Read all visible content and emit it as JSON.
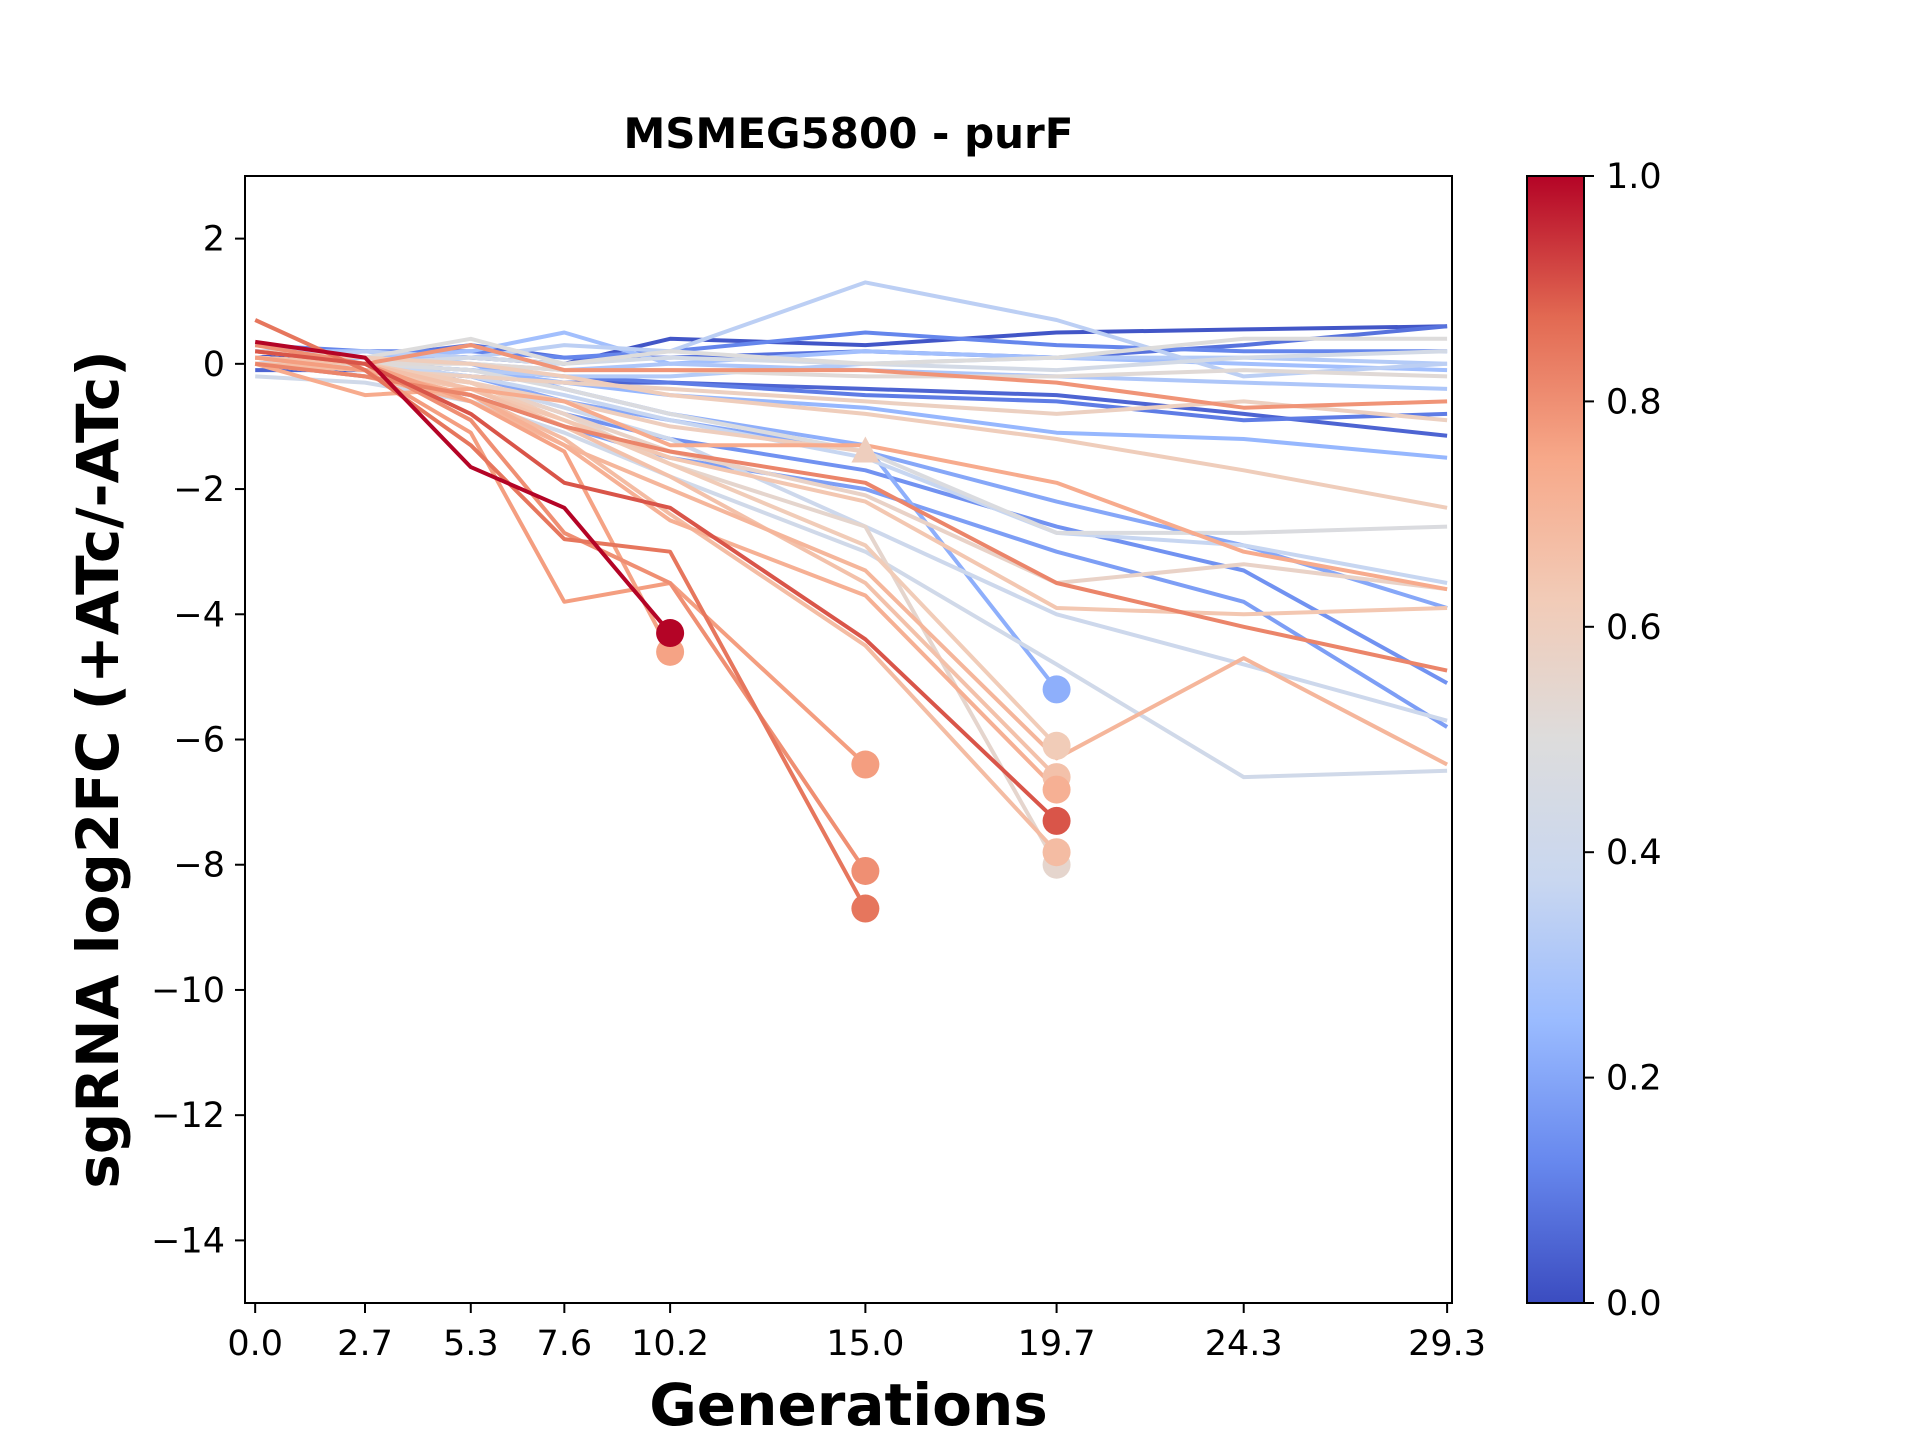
{
  "chart_data": {
    "type": "line",
    "title": "MSMEG5800 - purF",
    "xlabel": "Generations",
    "ylabel": "sgRNA log2FC (+ATc/-ATc)",
    "x_ticks": [
      "0.0",
      "2.7",
      "5.3",
      "7.6",
      "10.2",
      "15.0",
      "19.7",
      "24.3",
      "29.3"
    ],
    "y_ticks": [
      "2",
      "0",
      "−2",
      "−4",
      "−6",
      "−8",
      "−10",
      "−12",
      "−14"
    ],
    "xlim": [
      -0.25,
      29.42
    ],
    "ylim": [
      -15,
      3
    ],
    "colorbar": {
      "colormap": "coolwarm",
      "range": [
        0.0,
        1.0
      ],
      "tick_labels": [
        "0.0",
        "0.2",
        "0.4",
        "0.6",
        "0.8",
        "1.0"
      ],
      "colors": [
        "#3b4cc0",
        "#6788ee",
        "#9abbff",
        "#c9d7f0",
        "#dddcdc",
        "#f2cbb7",
        "#f7a889",
        "#e26952",
        "#b40426"
      ]
    },
    "series": [
      {
        "c": 0.02,
        "x": [
          0.0,
          2.7,
          5.3,
          7.6,
          10.2,
          15.0,
          19.7,
          24.3,
          29.3
        ],
        "y": [
          0.1,
          0.2,
          0.1,
          0.0,
          0.4,
          0.3,
          0.5,
          0.55,
          0.6
        ]
      },
      {
        "c": 0.05,
        "x": [
          0.0,
          2.7,
          5.3,
          7.6,
          10.2,
          15.0,
          19.7,
          24.3,
          29.3
        ],
        "y": [
          -0.1,
          -0.1,
          -0.2,
          -0.3,
          -0.3,
          -0.4,
          -0.5,
          -0.8,
          -1.15
        ]
      },
      {
        "c": 0.08,
        "x": [
          0.0,
          2.7,
          5.3,
          7.6,
          10.2,
          15.0,
          19.7,
          24.3,
          29.3
        ],
        "y": [
          0.2,
          0.1,
          0.3,
          0.1,
          0.1,
          0.2,
          0.1,
          0.3,
          0.6
        ]
      },
      {
        "c": 0.1,
        "x": [
          0.0,
          2.7,
          5.3,
          7.6,
          10.2,
          15.0,
          19.7,
          24.3,
          29.3
        ],
        "y": [
          0.0,
          0.0,
          -0.1,
          -0.2,
          -0.3,
          -0.5,
          -0.6,
          -0.9,
          -0.8
        ]
      },
      {
        "c": 0.12,
        "x": [
          0.0,
          2.7,
          5.3,
          7.6,
          10.2,
          15.0,
          19.7,
          24.3,
          29.3
        ],
        "y": [
          0.3,
          0.2,
          0.2,
          0.1,
          0.2,
          0.5,
          0.3,
          0.2,
          0.2
        ]
      },
      {
        "c": 0.15,
        "x": [
          0.0,
          2.7,
          5.3,
          7.6,
          10.2,
          15.0,
          19.7,
          24.3,
          29.3
        ],
        "y": [
          0.1,
          0.0,
          -0.3,
          -0.8,
          -1.2,
          -1.7,
          -2.6,
          -3.3,
          -5.1
        ]
      },
      {
        "c": 0.18,
        "x": [
          0.0,
          2.7,
          5.3,
          7.6,
          10.2,
          15.0,
          19.7,
          24.3,
          29.3
        ],
        "y": [
          0.0,
          -0.2,
          -0.5,
          -1.0,
          -1.5,
          -2.0,
          -3.0,
          -3.8,
          -5.8
        ]
      },
      {
        "c": 0.2,
        "x": [
          0.0,
          2.7,
          5.3,
          7.6,
          10.2,
          15.0,
          19.7,
          24.3,
          29.3
        ],
        "y": [
          0.1,
          0.0,
          -0.2,
          -0.6,
          -0.9,
          -1.4,
          -2.2,
          -2.9,
          -3.9
        ]
      },
      {
        "c": 0.22,
        "x": [
          0.0,
          2.7,
          5.3,
          7.6,
          10.2,
          15.0,
          19.7
        ],
        "y": [
          0.2,
          0.1,
          0.0,
          -0.4,
          -0.8,
          -1.3,
          -5.2
        ],
        "end": "dot"
      },
      {
        "c": 0.24,
        "x": [
          0.0,
          2.7,
          5.3,
          7.6,
          10.2,
          15.0,
          19.7,
          24.3,
          29.3
        ],
        "y": [
          0.1,
          0.0,
          -0.1,
          -0.3,
          -0.5,
          -0.7,
          -1.1,
          -1.2,
          -1.5
        ]
      },
      {
        "c": 0.27,
        "x": [
          0.0,
          2.7,
          5.3,
          7.6,
          10.2,
          15.0,
          19.7,
          24.3,
          29.3
        ],
        "y": [
          0.0,
          0.1,
          0.2,
          0.5,
          0.0,
          0.2,
          0.1,
          0.0,
          -0.1
        ]
      },
      {
        "c": 0.3,
        "x": [
          0.0,
          2.7,
          5.3,
          7.6,
          10.2,
          15.0,
          19.7,
          24.3,
          29.3
        ],
        "y": [
          0.2,
          0.2,
          0.0,
          -0.1,
          0.0,
          -0.1,
          -0.2,
          -0.3,
          -0.4
        ]
      },
      {
        "c": 0.32,
        "x": [
          0.0,
          2.7,
          5.3,
          7.6,
          10.2,
          15.0,
          19.7,
          24.3,
          29.3
        ],
        "y": [
          0.1,
          0.0,
          -0.1,
          -0.2,
          -0.2,
          0.0,
          0.1,
          0.1,
          0.0
        ]
      },
      {
        "c": 0.34,
        "x": [
          0.0,
          2.7,
          5.3,
          7.6,
          10.2,
          15.0,
          19.7,
          24.3,
          29.3
        ],
        "y": [
          0.0,
          0.2,
          0.1,
          0.3,
          0.2,
          1.3,
          0.7,
          -0.2,
          0.0
        ]
      },
      {
        "c": 0.37,
        "x": [
          0.0,
          2.7,
          5.3,
          7.6,
          10.2,
          15.0,
          19.7,
          24.3,
          29.3
        ],
        "y": [
          0.1,
          0.0,
          -0.2,
          -0.5,
          -0.9,
          -1.5,
          -2.7,
          -2.9,
          -3.5
        ]
      },
      {
        "c": 0.4,
        "x": [
          0.0,
          2.7,
          5.3,
          7.6,
          10.2,
          15.0,
          19.7,
          24.3,
          29.3
        ],
        "y": [
          0.0,
          -0.1,
          -0.3,
          -0.7,
          -1.2,
          -2.6,
          -4.0,
          -4.8,
          -5.7
        ]
      },
      {
        "c": 0.42,
        "x": [
          0.0,
          2.7,
          5.3,
          7.6,
          10.2,
          15.0,
          19.7,
          24.3,
          29.3
        ],
        "y": [
          -0.2,
          -0.3,
          -0.6,
          -1.1,
          -1.8,
          -3.0,
          -4.8,
          -6.6,
          -6.5
        ]
      },
      {
        "c": 0.44,
        "x": [
          0.0,
          2.7,
          5.3,
          7.6,
          10.2,
          15.0,
          19.7,
          24.3,
          29.3
        ],
        "y": [
          0.0,
          0.0,
          0.1,
          0.0,
          0.1,
          0.0,
          -0.1,
          0.1,
          0.2
        ]
      },
      {
        "c": 0.48,
        "x": [
          0.0,
          2.7,
          5.3,
          7.6,
          10.2,
          15.0,
          19.7,
          24.3,
          29.3
        ],
        "y": [
          0.1,
          0.0,
          -0.1,
          -0.4,
          -0.8,
          -1.4,
          -2.7,
          -2.7,
          -2.6
        ]
      },
      {
        "c": 0.5,
        "x": [
          0.0,
          2.7,
          5.3,
          7.6,
          10.2,
          15.0,
          19.7,
          24.3,
          29.3
        ],
        "y": [
          0.2,
          0.1,
          0.4,
          0.0,
          0.2,
          0.0,
          0.1,
          0.4,
          0.4
        ]
      },
      {
        "c": 0.52,
        "x": [
          0.0,
          2.7,
          5.3,
          7.6,
          10.2,
          15.0,
          19.7,
          24.3,
          29.3
        ],
        "y": [
          0.0,
          0.0,
          0.0,
          -0.1,
          -0.1,
          -0.2,
          -0.2,
          -0.1,
          -0.2
        ]
      },
      {
        "c": 0.55,
        "x": [
          0.0,
          2.7,
          5.3,
          7.6,
          10.2,
          15.0,
          19.7
        ],
        "y": [
          0.0,
          0.0,
          -0.3,
          -0.8,
          -1.6,
          -2.6,
          -8.0
        ],
        "end": "dot"
      },
      {
        "c": 0.57,
        "x": [
          0.0,
          2.7,
          5.3,
          7.6,
          10.2,
          15.0,
          19.7,
          24.3,
          29.3
        ],
        "y": [
          0.1,
          0.0,
          -0.3,
          -0.8,
          -1.4,
          -2.1,
          -3.5,
          -3.2,
          -3.6
        ]
      },
      {
        "c": 0.59,
        "x": [
          0.0,
          2.7,
          5.3,
          7.6,
          10.2,
          15.0,
          19.7,
          24.3,
          29.3
        ],
        "y": [
          0.0,
          -0.1,
          -0.2,
          -0.3,
          -0.4,
          -0.6,
          -0.8,
          -0.6,
          -0.9
        ]
      },
      {
        "c": 0.6,
        "x": [
          0.0,
          2.7,
          5.3,
          7.6,
          10.2,
          15.0
        ],
        "y": [
          0.0,
          -0.1,
          -0.3,
          -0.6,
          -1.0,
          -1.4
        ],
        "end": "tri"
      },
      {
        "c": 0.61,
        "x": [
          0.0,
          2.7,
          5.3,
          7.6,
          10.2,
          15.0,
          19.7,
          24.3,
          29.3
        ],
        "y": [
          0.2,
          0.1,
          0.0,
          -0.2,
          -0.5,
          -0.8,
          -1.2,
          -1.7,
          -2.3
        ]
      },
      {
        "c": 0.62,
        "x": [
          0.0,
          2.7,
          5.3,
          7.6,
          10.2,
          15.0,
          19.7
        ],
        "y": [
          0.1,
          0.0,
          -0.3,
          -0.9,
          -1.6,
          -2.9,
          -6.1
        ],
        "end": "dot"
      },
      {
        "c": 0.64,
        "x": [
          0.0,
          2.7,
          5.3,
          7.6,
          10.2,
          15.0,
          19.7,
          24.3,
          29.3
        ],
        "y": [
          0.0,
          -0.1,
          -0.4,
          -0.9,
          -1.5,
          -2.2,
          -3.9,
          -4.0,
          -3.9
        ]
      },
      {
        "c": 0.66,
        "x": [
          0.0,
          2.7,
          5.3,
          7.6,
          10.2,
          15.0,
          19.7
        ],
        "y": [
          0.1,
          0.0,
          -0.4,
          -1.0,
          -1.8,
          -3.5,
          -6.6
        ],
        "end": "dot"
      },
      {
        "c": 0.68,
        "x": [
          0.0,
          2.7,
          5.3,
          7.6,
          10.2,
          15.0,
          19.7
        ],
        "y": [
          0.0,
          -0.1,
          -0.5,
          -1.2,
          -2.4,
          -4.5,
          -7.8
        ],
        "end": "dot"
      },
      {
        "c": 0.7,
        "x": [
          0.0,
          2.7,
          5.3,
          7.6,
          10.2,
          15.0,
          19.7,
          24.3,
          29.3
        ],
        "y": [
          0.0,
          -0.2,
          -0.6,
          -1.3,
          -2.0,
          -3.3,
          -6.3,
          -4.7,
          -6.4
        ]
      },
      {
        "c": 0.72,
        "x": [
          0.0,
          2.7,
          5.3,
          7.6,
          10.2,
          15.0,
          19.7
        ],
        "y": [
          0.1,
          -0.1,
          -0.5,
          -1.3,
          -2.5,
          -3.7,
          -6.8
        ],
        "end": "dot"
      },
      {
        "c": 0.74,
        "x": [
          0.0,
          2.7,
          5.3,
          7.6,
          10.2,
          15.0,
          19.7,
          24.3,
          29.3
        ],
        "y": [
          0.0,
          -0.5,
          -0.4,
          -0.6,
          -1.3,
          -1.3,
          -1.9,
          -3.0,
          -3.6
        ]
      },
      {
        "c": 0.76,
        "x": [
          0.0,
          2.7,
          5.3,
          7.6,
          10.2
        ],
        "y": [
          0.2,
          0.0,
          -0.6,
          -1.4,
          -4.6
        ],
        "end": "dot"
      },
      {
        "c": 0.77,
        "x": [
          0.0,
          2.7,
          5.3,
          7.6,
          10.2,
          15.0
        ],
        "y": [
          0.1,
          -0.1,
          -1.1,
          -3.8,
          -3.5,
          -6.4
        ],
        "end": "dot"
      },
      {
        "c": 0.79,
        "x": [
          0.0,
          2.7,
          5.3,
          7.6,
          10.2,
          15.0,
          19.7,
          24.3,
          29.3
        ],
        "y": [
          0.2,
          0.0,
          0.3,
          -0.1,
          -0.1,
          -0.1,
          -0.3,
          -0.7,
          -0.6
        ]
      },
      {
        "c": 0.8,
        "x": [
          0.0,
          2.7,
          5.3,
          7.6,
          10.2,
          15.0
        ],
        "y": [
          0.3,
          0.0,
          -0.9,
          -2.7,
          -3.5,
          -8.1
        ],
        "end": "dot"
      },
      {
        "c": 0.82,
        "x": [
          0.0,
          2.7,
          5.3,
          7.6,
          10.2,
          15.0,
          19.7,
          24.3,
          29.3
        ],
        "y": [
          0.0,
          -0.2,
          -0.5,
          -1.0,
          -1.4,
          -1.9,
          -3.5,
          -4.2,
          -4.9
        ]
      },
      {
        "c": 0.85,
        "x": [
          0.0,
          2.7,
          5.3,
          7.6,
          10.2,
          15.0
        ],
        "y": [
          0.7,
          -0.1,
          -1.3,
          -2.8,
          -3.0,
          -8.7
        ],
        "end": "dot"
      },
      {
        "c": 0.9,
        "x": [
          0.0,
          2.7,
          5.3,
          7.6,
          10.2,
          15.0,
          19.7
        ],
        "y": [
          0.2,
          0.0,
          -0.8,
          -1.9,
          -2.3,
          -4.4,
          -7.3
        ],
        "end": "dot"
      },
      {
        "c": 1.0,
        "x": [
          0.0,
          2.7,
          5.3,
          7.6,
          10.2
        ],
        "y": [
          0.35,
          0.1,
          -1.65,
          -2.3,
          -4.3
        ],
        "end": "dot"
      }
    ]
  }
}
